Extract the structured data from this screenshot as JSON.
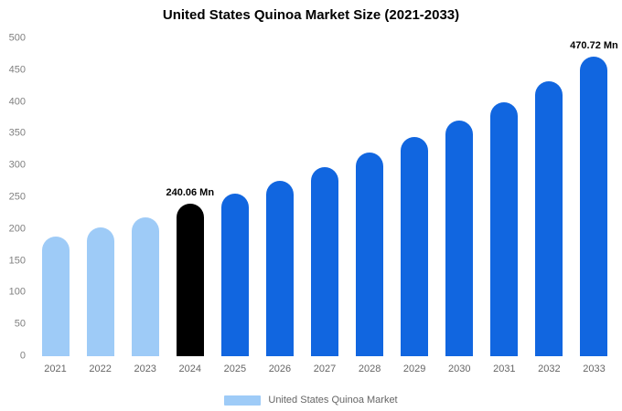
{
  "chart_data": {
    "type": "bar",
    "title": "United States Quinoa Market Size (2021-2033)",
    "categories": [
      "2021",
      "2022",
      "2023",
      "2024",
      "2025",
      "2026",
      "2027",
      "2028",
      "2029",
      "2030",
      "2031",
      "2032",
      "2033"
    ],
    "values": [
      188,
      202,
      218,
      240.06,
      256,
      276,
      298,
      320,
      345,
      371,
      400,
      433,
      470.72
    ],
    "bar_roles": [
      "past",
      "past",
      "past",
      "current",
      "forecast",
      "forecast",
      "forecast",
      "forecast",
      "forecast",
      "forecast",
      "forecast",
      "forecast",
      "forecast"
    ],
    "colors": {
      "past": "#9ecbf7",
      "current": "#000000",
      "forecast": "#1166e0"
    },
    "annotations": [
      {
        "category": "2024",
        "text": "240.06 Mn"
      },
      {
        "category": "2033",
        "text": "470.72 Mn"
      }
    ],
    "xlabel": "",
    "ylabel": "",
    "ylim": [
      0,
      500
    ],
    "y_tick_step": 50,
    "grid": false,
    "legend": {
      "position": "bottom",
      "entries": [
        {
          "label": "United States Quinoa Market",
          "swatch_color": "#9ecbf7"
        }
      ]
    }
  }
}
